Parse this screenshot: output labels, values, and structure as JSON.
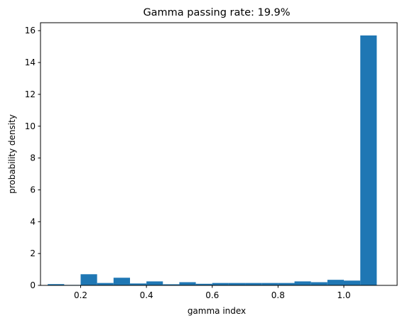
{
  "chart_data": {
    "type": "bar",
    "title": "Gamma passing rate: 19.9%",
    "xlabel": "gamma index",
    "ylabel": "probability density",
    "xlim": [
      0.078,
      1.162
    ],
    "ylim": [
      0,
      16.5
    ],
    "xticks": [
      0.2,
      0.4,
      0.6,
      0.8,
      1.0
    ],
    "xtick_labels": [
      "0.2",
      "0.4",
      "0.6",
      "0.8",
      "1.0"
    ],
    "yticks": [
      0,
      2,
      4,
      6,
      8,
      10,
      12,
      14,
      16
    ],
    "ytick_labels": [
      "0",
      "2",
      "4",
      "6",
      "8",
      "10",
      "12",
      "14",
      "16"
    ],
    "bar_color": "#1f77b4",
    "bins": [
      {
        "x0": 0.1,
        "x1": 0.15,
        "value": 0.08
      },
      {
        "x0": 0.15,
        "x1": 0.2,
        "value": 0.03
      },
      {
        "x0": 0.2,
        "x1": 0.25,
        "value": 0.7
      },
      {
        "x0": 0.25,
        "x1": 0.3,
        "value": 0.15
      },
      {
        "x0": 0.3,
        "x1": 0.35,
        "value": 0.48
      },
      {
        "x0": 0.35,
        "x1": 0.4,
        "value": 0.12
      },
      {
        "x0": 0.4,
        "x1": 0.45,
        "value": 0.25
      },
      {
        "x0": 0.45,
        "x1": 0.5,
        "value": 0.07
      },
      {
        "x0": 0.5,
        "x1": 0.55,
        "value": 0.2
      },
      {
        "x0": 0.55,
        "x1": 0.6,
        "value": 0.1
      },
      {
        "x0": 0.6,
        "x1": 0.65,
        "value": 0.15
      },
      {
        "x0": 0.65,
        "x1": 0.7,
        "value": 0.15
      },
      {
        "x0": 0.7,
        "x1": 0.75,
        "value": 0.15
      },
      {
        "x0": 0.75,
        "x1": 0.8,
        "value": 0.15
      },
      {
        "x0": 0.8,
        "x1": 0.85,
        "value": 0.15
      },
      {
        "x0": 0.85,
        "x1": 0.9,
        "value": 0.25
      },
      {
        "x0": 0.9,
        "x1": 0.95,
        "value": 0.2
      },
      {
        "x0": 0.95,
        "x1": 1.0,
        "value": 0.35
      },
      {
        "x0": 1.0,
        "x1": 1.05,
        "value": 0.3
      },
      {
        "x0": 1.05,
        "x1": 1.1,
        "value": 15.7
      }
    ]
  }
}
